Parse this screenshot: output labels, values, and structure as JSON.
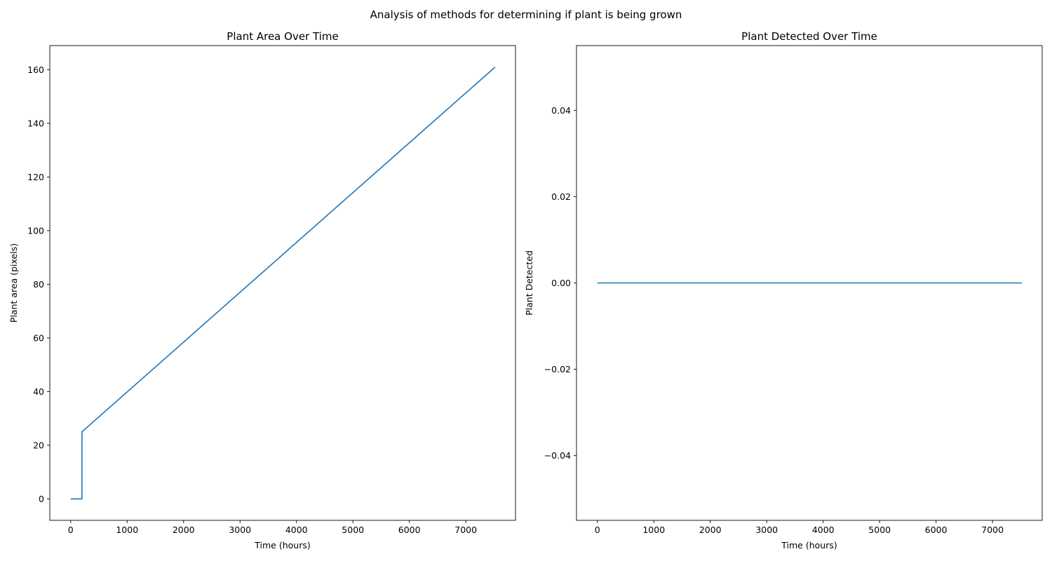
{
  "figure": {
    "suptitle": "Analysis of methods for determining if plant is being grown",
    "line_color": "#1f77b4"
  },
  "chart_data": [
    {
      "type": "line",
      "title": "Plant Area Over Time",
      "xlabel": "Time (hours)",
      "ylabel": "Plant area (pixels)",
      "xlim": [
        -370,
        7880
      ],
      "ylim": [
        -8,
        169
      ],
      "xticks": [
        0,
        1000,
        2000,
        3000,
        4000,
        5000,
        6000,
        7000
      ],
      "xtick_labels": [
        "0",
        "1000",
        "2000",
        "3000",
        "4000",
        "5000",
        "6000",
        "7000"
      ],
      "yticks": [
        0,
        20,
        40,
        60,
        80,
        100,
        120,
        140,
        160
      ],
      "ytick_labels": [
        "0",
        "20",
        "40",
        "60",
        "80",
        "100",
        "120",
        "140",
        "160"
      ],
      "grid": false,
      "series": [
        {
          "x": [
            0,
            200,
            200,
            7520
          ],
          "y": [
            0,
            0,
            25,
            161
          ]
        }
      ]
    },
    {
      "type": "line",
      "title": "Plant Detected Over Time",
      "xlabel": "Time (hours)",
      "ylabel": "Plant Detected",
      "xlim": [
        -370,
        7880
      ],
      "ylim": [
        -0.055,
        0.055
      ],
      "xticks": [
        0,
        1000,
        2000,
        3000,
        4000,
        5000,
        6000,
        7000
      ],
      "xtick_labels": [
        "0",
        "1000",
        "2000",
        "3000",
        "4000",
        "5000",
        "6000",
        "7000"
      ],
      "yticks": [
        -0.04,
        -0.02,
        0.0,
        0.02,
        0.04
      ],
      "ytick_labels": [
        "−0.04",
        "−0.02",
        "0.00",
        "0.02",
        "0.04"
      ],
      "grid": false,
      "series": [
        {
          "x": [
            0,
            7520
          ],
          "y": [
            0,
            0
          ]
        }
      ]
    }
  ]
}
